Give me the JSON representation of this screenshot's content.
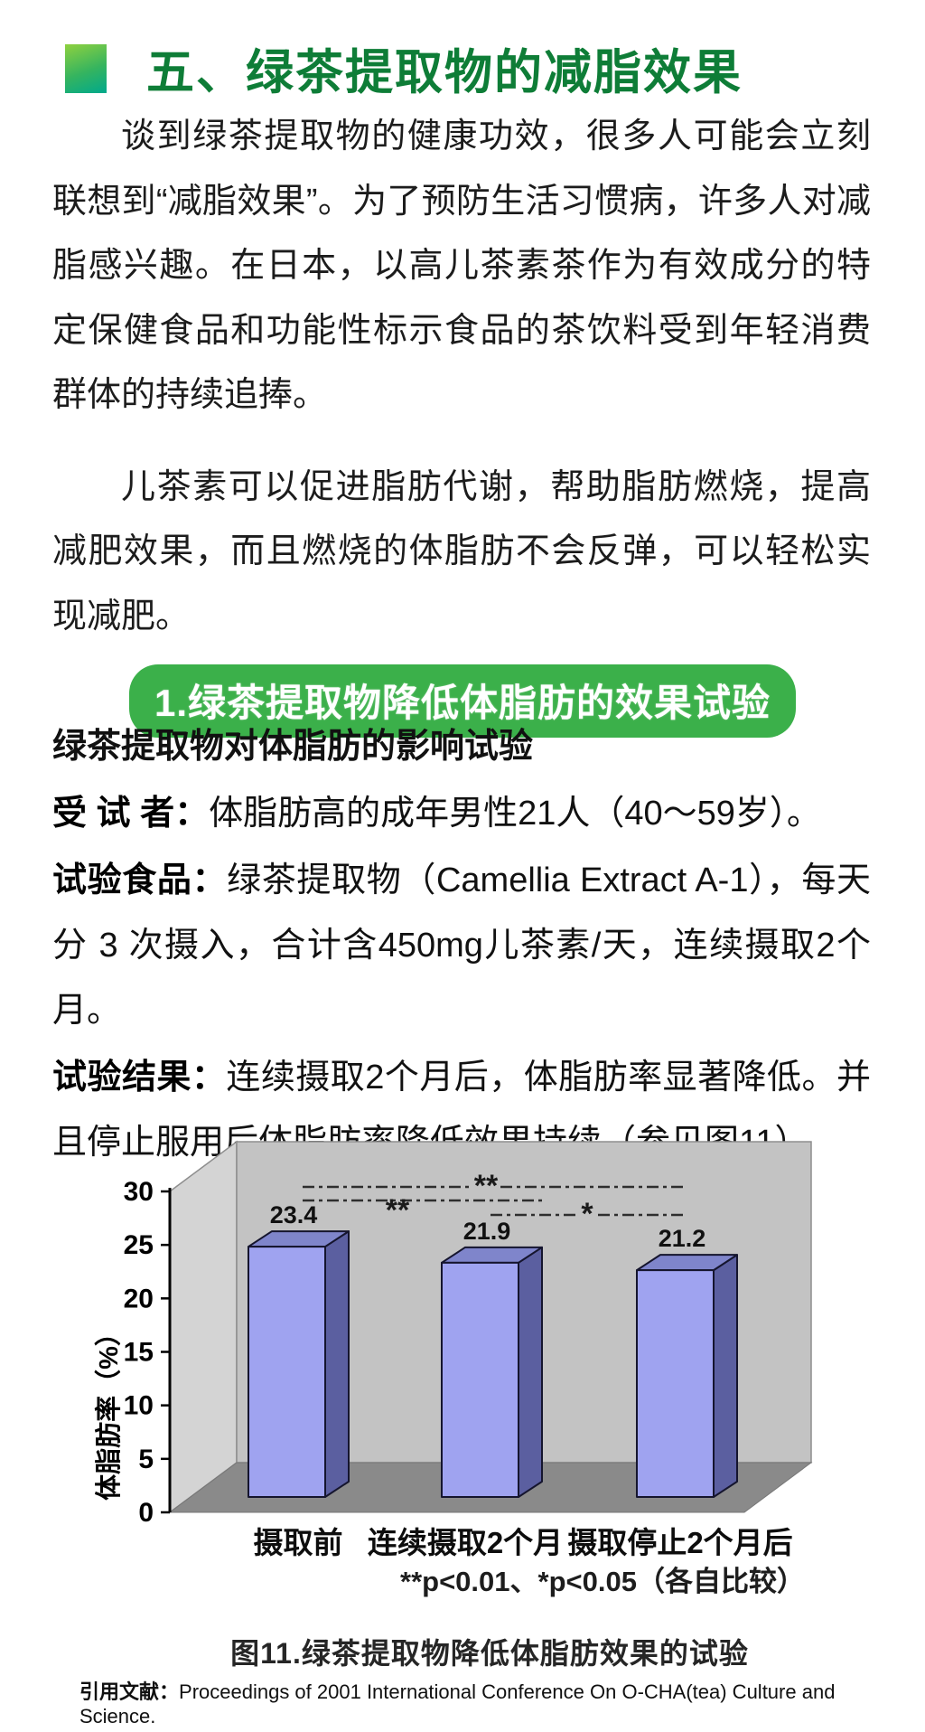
{
  "header": {
    "title": "五、绿茶提取物的减脂效果"
  },
  "paragraphs": {
    "p1": "谈到绿茶提取物的健康功效，很多人可能会立刻联想到“减脂效果”。为了预防生活习惯病，许多人对减脂感兴趣。在日本，以高儿茶素茶作为有效成分的特定保健食品和功能性标示食品的茶饮料受到年轻消费群体的持续追捧。",
    "p2": "儿茶素可以促进脂肪代谢，帮助脂肪燃烧，提高减肥效果，而且燃烧的体脂肪不会反弹，可以轻松实现减肥。"
  },
  "section": {
    "heading": "1.绿茶提取物降低体脂肪的效果试验"
  },
  "experiment": {
    "heading": "绿茶提取物对体脂肪的影响试验",
    "items": [
      {
        "label": "受 试 者：",
        "text": "体脂肪高的成年男性21人（40～59岁）。"
      },
      {
        "label": "试验食品：",
        "text": "绿茶提取物（Camellia Extract A-1），每天分 3 次摄入，合计含450mg儿茶素/天，连续摄取2个月。"
      },
      {
        "label": "试验结果：",
        "text": "连续摄取2个月后，体脂肪率显著降低。并且停止服用后体脂肪率降低效果持续（参见图11）。"
      }
    ]
  },
  "chart_data": {
    "type": "bar",
    "categories": [
      "摄取前",
      "连续摄取2个月",
      "摄取停止2个月后"
    ],
    "values": [
      23.4,
      21.9,
      21.2
    ],
    "value_labels": [
      "23.4",
      "21.9",
      "21.2"
    ],
    "title": "图11.绿茶提取物降低体脂肪效果的试验",
    "xlabel": "",
    "ylabel": "体脂肪率（%）",
    "ylim": [
      0,
      30
    ],
    "ytick_step": 5,
    "yticks": [
      "0",
      "5",
      "10",
      "15",
      "20",
      "25",
      "30"
    ],
    "style": "3d-column",
    "grid": false,
    "significance": [
      {
        "from": 0,
        "to": 2,
        "marker": "**"
      },
      {
        "from": 0,
        "to": 1,
        "marker": "**"
      },
      {
        "from": 1,
        "to": 2,
        "marker": "*"
      }
    ],
    "note": "**p<0.01、*p<0.05（各自比较）",
    "colors": {
      "bar_front": "#9fa3f0",
      "bar_top": "#7f85cb",
      "bar_side": "#5b5fa0",
      "bar_outline": "#15152e",
      "back_wall": "#c3c3c3",
      "side_wall": "#d4d4d4",
      "floor": "#8a8a8a",
      "wall_edge": "#8e8e8e",
      "axis": "#000000"
    }
  },
  "figure": {
    "caption": "图11.绿茶提取物降低体脂肪效果的试验"
  },
  "citation": {
    "label": "引用文献：",
    "text": "Proceedings of 2001 International Conference On O-CHA(tea) Culture and Science."
  }
}
